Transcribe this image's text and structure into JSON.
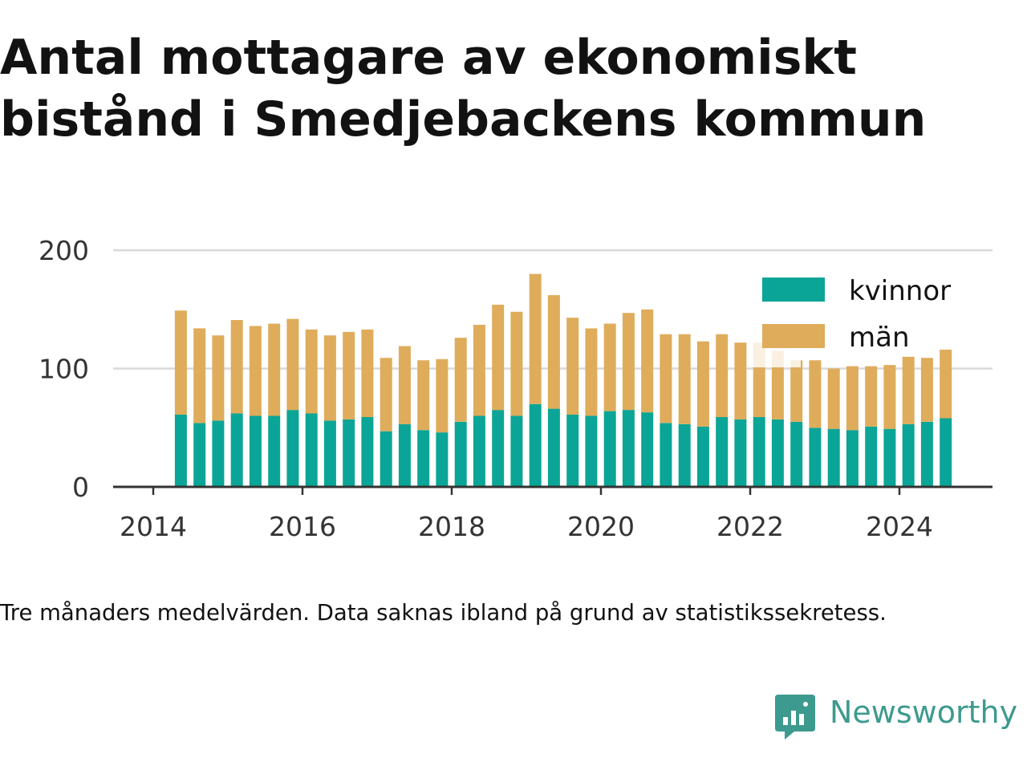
{
  "title": "Antal mottagare av ekonomiskt bistånd i Smedjebackens kommun",
  "note": "Tre månaders medelvärden. Data saknas ibland på grund av statistikssekretess.",
  "brand": {
    "name": "Newsworthy",
    "color": "#3d9a8e",
    "icon": "newsworthy-bar-chart-speech-bubble-icon"
  },
  "colors": {
    "kvinnor": "#0aa596",
    "man": "#deac5b",
    "grid": "#d9d9d9",
    "axis": "#333333"
  },
  "chart_data": {
    "type": "bar",
    "stacked": true,
    "title": "Antal mottagare av ekonomiskt bistånd i Smedjebackens kommun",
    "xlabel": "",
    "ylabel": "",
    "ylim": [
      0,
      200
    ],
    "yticks": [
      "0",
      "100",
      "200"
    ],
    "xticks": [
      "2014",
      "2016",
      "2018",
      "2020",
      "2022",
      "2024"
    ],
    "grid": true,
    "legend_position": "top-right",
    "categories": [
      "2014 Q2",
      "2014 Q3",
      "2014 Q4",
      "2015 Q1",
      "2015 Q2",
      "2015 Q3",
      "2015 Q4",
      "2016 Q1",
      "2016 Q2",
      "2016 Q3",
      "2016 Q4",
      "2017 Q1",
      "2017 Q2",
      "2017 Q3",
      "2017 Q4",
      "2018 Q1",
      "2018 Q2",
      "2018 Q3",
      "2018 Q4",
      "2019 Q1",
      "2019 Q2",
      "2019 Q3",
      "2019 Q4",
      "2020 Q1",
      "2020 Q2",
      "2020 Q3",
      "2020 Q4",
      "2021 Q1",
      "2021 Q2",
      "2021 Q3",
      "2021 Q4",
      "2022 Q1",
      "2022 Q2",
      "2022 Q3",
      "2022 Q4",
      "2023 Q1",
      "2023 Q2",
      "2023 Q3",
      "2023 Q4",
      "2024 Q1",
      "2024 Q2",
      "2024 Q3"
    ],
    "series": [
      {
        "name": "kvinnor",
        "values": [
          61,
          54,
          56,
          62,
          60,
          60,
          65,
          62,
          56,
          57,
          59,
          47,
          53,
          48,
          46,
          55,
          60,
          65,
          60,
          70,
          66,
          61,
          60,
          64,
          65,
          63,
          54,
          53,
          51,
          59,
          57,
          59,
          57,
          55,
          50,
          49,
          48,
          51,
          49,
          53,
          55,
          58
        ]
      },
      {
        "name": "män",
        "values": [
          88,
          80,
          72,
          79,
          76,
          78,
          77,
          71,
          72,
          74,
          74,
          62,
          66,
          59,
          62,
          71,
          77,
          89,
          88,
          110,
          96,
          82,
          74,
          74,
          82,
          87,
          75,
          76,
          72,
          70,
          65,
          63,
          58,
          52,
          57,
          51,
          54,
          51,
          54,
          57,
          54,
          58
        ]
      }
    ]
  }
}
